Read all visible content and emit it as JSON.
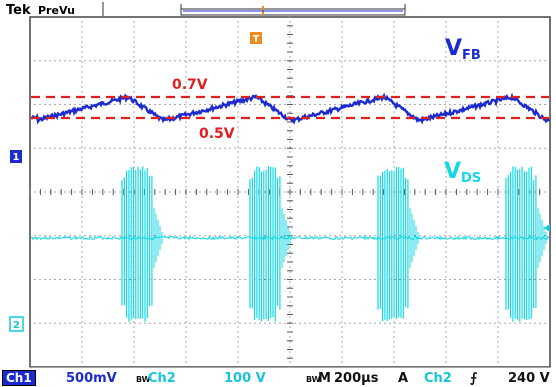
{
  "header": {
    "brand": "Tek",
    "mode": "PreVu",
    "trigger_marker_glyph": "T"
  },
  "annotations": {
    "vfb_main": "V",
    "vfb_sub": "FB",
    "vds_main": "V",
    "vds_sub": "DS",
    "upper_threshold": "0.7V",
    "lower_threshold": "0.5V"
  },
  "channel_markers": {
    "ch1": "1",
    "ch2": "2"
  },
  "status": {
    "ch1_label": "Ch1",
    "ch1_scale": "500mV",
    "bw_symbol": "B",
    "bw_sub": "W",
    "ch2_label": "Ch2",
    "ch2_scale": "100 V",
    "timebase_label": "M",
    "timebase_value": "200µs",
    "trigger_mode": "A",
    "trigger_source": "Ch2",
    "trigger_slope_glyph": "⨍",
    "trigger_level": "240 V"
  },
  "colors": {
    "ch1": "#1c2bd0",
    "ch2": "#14d8e6",
    "threshold_lines": "#e0201e",
    "trigger_marker": "#f08a1a",
    "grid": "#555555"
  }
}
